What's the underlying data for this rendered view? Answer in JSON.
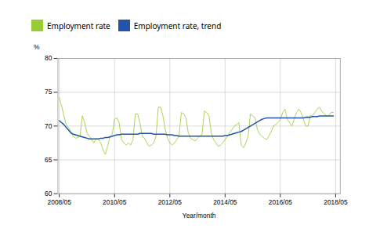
{
  "chart_data": {
    "type": "line",
    "xlabel": "Year/month",
    "ylabel": "%",
    "x": [
      2008.3333,
      2008.4167,
      2008.5,
      2008.5833,
      2008.6667,
      2008.75,
      2008.8333,
      2008.9167,
      2009.0,
      2009.0833,
      2009.1667,
      2009.25,
      2009.3333,
      2009.4167,
      2009.5,
      2009.5833,
      2009.6667,
      2009.75,
      2009.8333,
      2009.9167,
      2010.0,
      2010.0833,
      2010.1667,
      2010.25,
      2010.3333,
      2010.4167,
      2010.5,
      2010.5833,
      2010.6667,
      2010.75,
      2010.8333,
      2010.9167,
      2011.0,
      2011.0833,
      2011.1667,
      2011.25,
      2011.3333,
      2011.4167,
      2011.5,
      2011.5833,
      2011.6667,
      2011.75,
      2011.8333,
      2011.9167,
      2012.0,
      2012.0833,
      2012.1667,
      2012.25,
      2012.3333,
      2012.4167,
      2012.5,
      2012.5833,
      2012.6667,
      2012.75,
      2012.8333,
      2012.9167,
      2013.0,
      2013.0833,
      2013.1667,
      2013.25,
      2013.3333,
      2013.4167,
      2013.5,
      2013.5833,
      2013.6667,
      2013.75,
      2013.8333,
      2013.9167,
      2014.0,
      2014.0833,
      2014.1667,
      2014.25,
      2014.3333,
      2014.4167,
      2014.5,
      2014.5833,
      2014.6667,
      2014.75,
      2014.8333,
      2014.9167,
      2015.0,
      2015.0833,
      2015.1667,
      2015.25,
      2015.3333,
      2015.4167,
      2015.5,
      2015.5833,
      2015.6667,
      2015.75,
      2015.8333,
      2015.9167,
      2016.0,
      2016.0833,
      2016.1667,
      2016.25,
      2016.3333,
      2016.4167,
      2016.5,
      2016.5833,
      2016.6667,
      2016.75,
      2016.8333,
      2016.9167,
      2017.0,
      2017.0833,
      2017.1667,
      2017.25,
      2017.3333,
      2017.4167,
      2017.5,
      2017.5833,
      2017.6667,
      2017.75,
      2017.8333,
      2017.9167,
      2018.0,
      2018.0833,
      2018.1667,
      2018.25
    ],
    "series": [
      {
        "name": "Employment rate",
        "color": "#99cc33",
        "values": [
          74.2,
          73.0,
          71.5,
          70.2,
          69.8,
          69.2,
          68.5,
          68.2,
          68.3,
          68.5,
          71.5,
          70.5,
          69.0,
          68.5,
          68.0,
          67.5,
          68.2,
          68.0,
          67.5,
          66.5,
          65.8,
          67.0,
          68.5,
          68.8,
          71.0,
          71.2,
          70.5,
          68.0,
          67.5,
          67.2,
          67.5,
          67.2,
          68.0,
          71.8,
          71.8,
          70.5,
          68.5,
          68.2,
          67.5,
          67.0,
          67.2,
          67.5,
          68.5,
          72.8,
          72.8,
          71.5,
          69.5,
          68.2,
          67.5,
          67.2,
          67.5,
          68.0,
          68.5,
          72.0,
          71.8,
          71.2,
          69.0,
          68.2,
          68.0,
          67.8,
          68.2,
          68.5,
          68.8,
          72.2,
          72.0,
          71.5,
          69.0,
          68.0,
          67.5,
          67.0,
          67.2,
          67.5,
          68.0,
          68.5,
          69.0,
          69.5,
          70.0,
          70.2,
          70.5,
          67.2,
          66.8,
          67.5,
          68.5,
          71.8,
          71.5,
          71.2,
          69.5,
          68.8,
          68.5,
          68.2,
          68.0,
          68.5,
          69.2,
          70.0,
          70.2,
          70.5,
          71.0,
          72.0,
          72.5,
          71.0,
          70.5,
          70.0,
          71.0,
          72.0,
          72.5,
          72.0,
          71.0,
          70.0,
          70.0,
          71.5,
          71.5,
          72.0,
          72.5,
          72.8,
          72.2,
          71.8,
          71.5,
          71.5,
          72.0,
          72.0
        ]
      },
      {
        "name": "Employment rate, trend",
        "color": "#2255aa",
        "values": [
          70.8,
          70.5,
          70.2,
          69.8,
          69.4,
          69.0,
          68.8,
          68.7,
          68.6,
          68.5,
          68.4,
          68.3,
          68.2,
          68.1,
          68.1,
          68.1,
          68.1,
          68.1,
          68.2,
          68.2,
          68.3,
          68.3,
          68.4,
          68.5,
          68.6,
          68.7,
          68.7,
          68.8,
          68.8,
          68.8,
          68.8,
          68.8,
          68.8,
          68.8,
          68.8,
          68.9,
          68.9,
          68.9,
          68.9,
          68.9,
          68.9,
          68.8,
          68.8,
          68.8,
          68.8,
          68.8,
          68.8,
          68.7,
          68.7,
          68.7,
          68.6,
          68.6,
          68.5,
          68.5,
          68.5,
          68.5,
          68.5,
          68.5,
          68.5,
          68.5,
          68.5,
          68.5,
          68.5,
          68.5,
          68.5,
          68.5,
          68.5,
          68.5,
          68.5,
          68.5,
          68.5,
          68.5,
          68.6,
          68.6,
          68.7,
          68.8,
          68.9,
          69.0,
          69.1,
          69.2,
          69.4,
          69.6,
          69.8,
          70.0,
          70.2,
          70.4,
          70.6,
          70.8,
          71.0,
          71.1,
          71.2,
          71.2,
          71.2,
          71.2,
          71.2,
          71.2,
          71.2,
          71.2,
          71.2,
          71.2,
          71.2,
          71.2,
          71.2,
          71.2,
          71.2,
          71.2,
          71.2,
          71.3,
          71.3,
          71.3,
          71.4,
          71.4,
          71.4,
          71.5,
          71.5,
          71.5,
          71.5,
          71.5,
          71.5,
          71.5
        ]
      }
    ],
    "xlim": [
      2008.2833,
      2018.5
    ],
    "xticks": [
      {
        "value": 2008.333,
        "label": "2008/05"
      },
      {
        "value": 2010.333,
        "label": "2010/05"
      },
      {
        "value": 2012.333,
        "label": "2012/05"
      },
      {
        "value": 2014.333,
        "label": "2014/05"
      },
      {
        "value": 2016.333,
        "label": "2016/05"
      },
      {
        "value": 2018.333,
        "label": "2018/05"
      }
    ],
    "ylim": [
      60,
      80
    ],
    "yticks": [
      60,
      65,
      70,
      75,
      80
    ],
    "grid": true,
    "legend": "top"
  }
}
